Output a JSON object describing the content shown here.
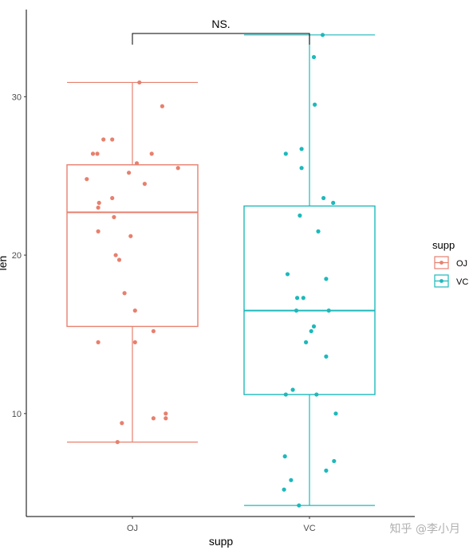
{
  "chart_data": {
    "type": "boxplot",
    "xlabel": "supp",
    "ylabel": "len",
    "categories": [
      "OJ",
      "VC"
    ],
    "ylim": [
      3.5,
      35.5
    ],
    "yticks": [
      10,
      20,
      30
    ],
    "grid": false,
    "legend": {
      "title": "supp",
      "position": "right",
      "entries": [
        "OJ",
        "VC"
      ]
    },
    "colors": {
      "OJ": "#E7806E",
      "VC": "#1DB9BB"
    },
    "series": [
      {
        "name": "OJ",
        "box": {
          "min": 8.2,
          "q1": 15.5,
          "median": 22.7,
          "q3": 25.7,
          "max": 30.9
        },
        "points": [
          30.9,
          29.4,
          27.3,
          27.3,
          26.4,
          26.4,
          26.4,
          25.8,
          25.5,
          25.2,
          24.8,
          24.5,
          23.6,
          23.3,
          23.0,
          22.4,
          21.5,
          21.2,
          20.0,
          19.7,
          17.6,
          16.5,
          15.2,
          14.5,
          14.5,
          10.0,
          9.7,
          9.7,
          9.4,
          8.2
        ],
        "jitter": [
          0.08,
          0.34,
          -0.33,
          -0.23,
          -0.45,
          -0.4,
          0.22,
          0.05,
          0.52,
          -0.04,
          -0.52,
          0.14,
          -0.23,
          -0.38,
          -0.39,
          -0.21,
          -0.39,
          -0.02,
          -0.19,
          -0.15,
          -0.09,
          0.03,
          0.24,
          -0.39,
          0.03,
          0.38,
          0.24,
          0.38,
          -0.12,
          -0.17
        ]
      },
      {
        "name": "VC",
        "box": {
          "min": 4.2,
          "q1": 11.2,
          "median": 16.5,
          "q3": 23.1,
          "max": 33.9
        },
        "points": [
          33.9,
          32.5,
          29.5,
          26.7,
          26.4,
          25.5,
          23.6,
          23.3,
          22.5,
          21.5,
          18.8,
          18.5,
          17.3,
          17.3,
          16.5,
          16.5,
          15.5,
          15.2,
          14.5,
          13.6,
          11.5,
          11.2,
          11.2,
          10.0,
          7.3,
          7.0,
          6.4,
          5.8,
          5.2,
          4.2
        ],
        "jitter": [
          0.15,
          0.05,
          0.06,
          -0.09,
          -0.27,
          -0.09,
          0.16,
          0.27,
          -0.11,
          0.1,
          -0.25,
          0.19,
          -0.14,
          -0.07,
          -0.15,
          0.22,
          0.05,
          0.02,
          -0.04,
          0.19,
          -0.19,
          -0.27,
          0.08,
          0.3,
          -0.28,
          0.28,
          0.19,
          -0.21,
          -0.29,
          -0.12
        ]
      }
    ],
    "annotation": {
      "text": "NS.",
      "from": "OJ",
      "to": "VC"
    }
  },
  "watermark": "知乎 @李小月"
}
